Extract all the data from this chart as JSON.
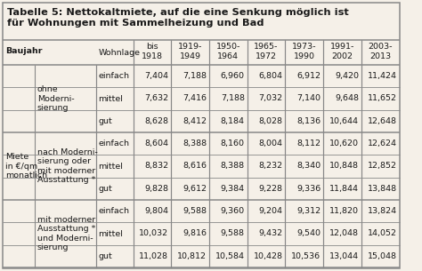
{
  "title_line1": "Tabelle 5: Nettokaltmiete, auf die eine Senkung möglich ist",
  "title_line2": "für Wohnungen mit Sammelheizung und Bad",
  "groups": [
    {
      "label": "ohne\nModerni-\nsierung",
      "rows": [
        {
          "wohnlage": "einfach",
          "values": [
            "7,404",
            "7,188",
            "6,960",
            "6,804",
            "6,912",
            "9,420",
            "11,424"
          ]
        },
        {
          "wohnlage": "mittel",
          "values": [
            "7,632",
            "7,416",
            "7,188",
            "7,032",
            "7,140",
            "9,648",
            "11,652"
          ]
        },
        {
          "wohnlage": "gut",
          "values": [
            "8,628",
            "8,412",
            "8,184",
            "8,028",
            "8,136",
            "10,644",
            "12,648"
          ]
        }
      ]
    },
    {
      "label": "nach Moderni-\nsierung oder\nmit moderner\nAusstattung *",
      "rows": [
        {
          "wohnlage": "einfach",
          "values": [
            "8,604",
            "8,388",
            "8,160",
            "8,004",
            "8,112",
            "10,620",
            "12,624"
          ]
        },
        {
          "wohnlage": "mittel",
          "values": [
            "8,832",
            "8,616",
            "8,388",
            "8,232",
            "8,340",
            "10,848",
            "12,852"
          ]
        },
        {
          "wohnlage": "gut",
          "values": [
            "9,828",
            "9,612",
            "9,384",
            "9,228",
            "9,336",
            "11,844",
            "13,848"
          ]
        }
      ]
    },
    {
      "label": "mit moderner\nAusstattung *\nund Moderni-\nsierung",
      "rows": [
        {
          "wohnlage": "einfach",
          "values": [
            "9,804",
            "9,588",
            "9,360",
            "9,204",
            "9,312",
            "11,820",
            "13,824"
          ]
        },
        {
          "wohnlage": "mittel",
          "values": [
            "10,032",
            "9,816",
            "9,588",
            "9,432",
            "9,540",
            "12,048",
            "14,052"
          ]
        },
        {
          "wohnlage": "gut",
          "values": [
            "11,028",
            "10,812",
            "10,584",
            "10,428",
            "10,536",
            "13,044",
            "15,048"
          ]
        }
      ]
    }
  ],
  "col_headers": [
    "bis\n1918",
    "1919-\n1949",
    "1950-\n1964",
    "1965-\n1972",
    "1973-\n1990",
    "1991-\n2002",
    "2003-\n2013"
  ],
  "bg_color": "#f5f0e8",
  "line_color": "#888888",
  "text_color": "#1a1a1a",
  "fs": 6.8,
  "fs_title": 8.2,
  "fs_header": 6.8
}
